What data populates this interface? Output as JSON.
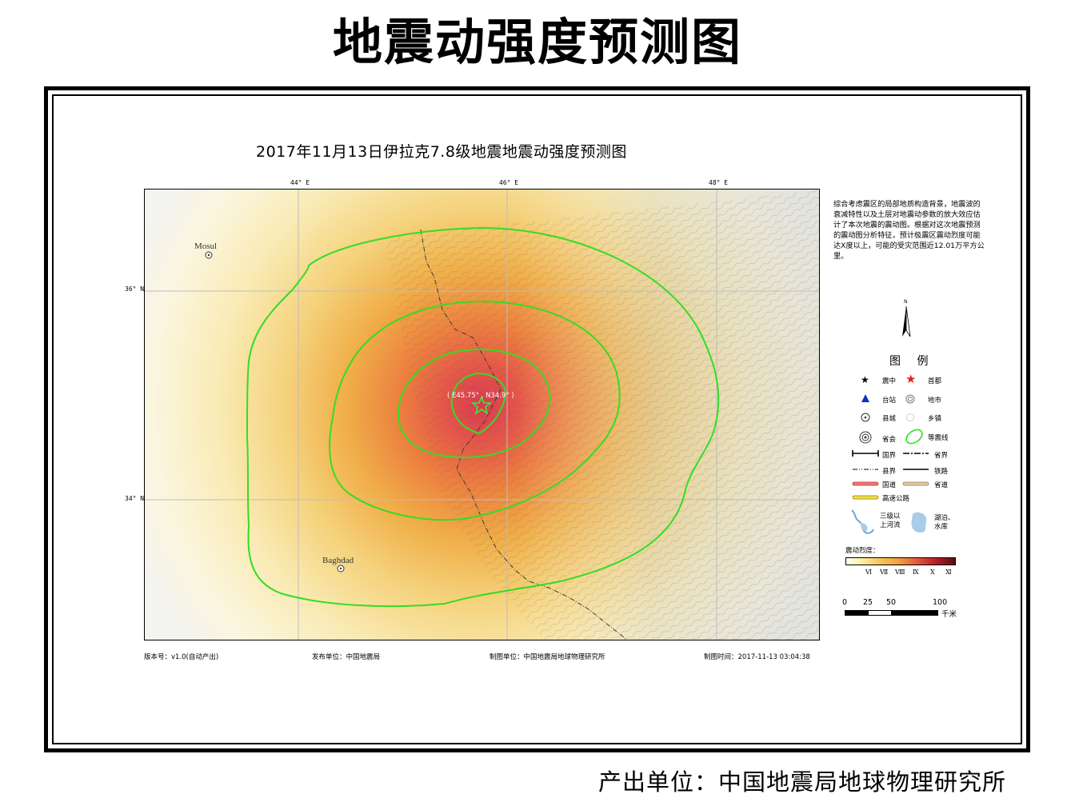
{
  "main_title": "地震动强度预测图",
  "sub_title": "2017年11月13日伊拉克7.8级地震地震动强度预测图",
  "coords": {
    "lon_44": "44° E",
    "lon_46": "46° E",
    "lon_48": "48° E",
    "lat_36": "36° N",
    "lat_34": "34° N"
  },
  "map": {
    "cities": {
      "mosul": "Mosul",
      "baghdad": "Baghdad"
    },
    "epicenter_label": "( E45.75° , N34.9° )"
  },
  "description": "综合考虑震区的局部地质构造背景，地震波的衰减特性以及土层对地震动参数的放大效应估计了本次地震的震动图。根据对这次地震预测的震动图分析特征，预计极震区震动烈度可能达X度以上，可能的受灾范围近12.01万平方公里。",
  "legend": {
    "title": "图 例",
    "epicenter": "震中",
    "capital": "首都",
    "station": "台站",
    "prefecture_city": "地市",
    "county_town": "县城",
    "township": "乡镇",
    "provincial_capital": "省会",
    "isoseismal": "等震线",
    "national_border": "国界",
    "provincial_border": "省界",
    "county_border": "县界",
    "railway": "铁路",
    "national_road": "国道",
    "provincial_road": "省道",
    "expressway": "高速公路",
    "river": "三级以上河流",
    "lake": "湖泊、水库",
    "intensity_caption": "震动烈度：",
    "intensity_levels": [
      "Ⅵ",
      "Ⅶ",
      "Ⅷ",
      "Ⅸ",
      "Ⅹ",
      "Ⅺ"
    ]
  },
  "scale_bar": {
    "ticks": [
      "0",
      "25",
      "50",
      "100"
    ],
    "unit": "千米"
  },
  "footer": {
    "version": "版本号：v1.0(自动产出)",
    "publisher": "发布单位：中国地震局",
    "maker": "制图单位：中国地震局地球物理研究所",
    "time": "制图时间：2017-11-13 03:04:38"
  },
  "producer": "产出单位：中国地震局地球物理研究所",
  "colors": {
    "isoseismal": "#33dd22",
    "epicenter_star": "#33ee33",
    "capital_star": "#e02020",
    "station": "#1030c0"
  }
}
